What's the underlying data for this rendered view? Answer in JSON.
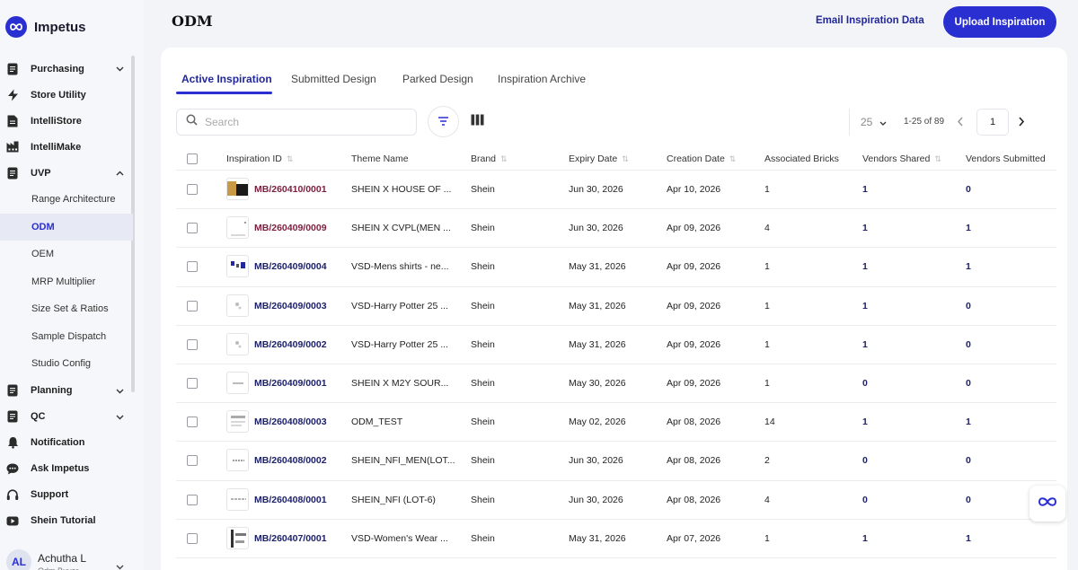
{
  "brand": {
    "name": "Impetus"
  },
  "sidebar": {
    "items": [
      {
        "key": "purchasing",
        "label": "Purchasing",
        "icon": "document-icon",
        "chevron": "down"
      },
      {
        "key": "store-utility",
        "label": "Store Utility",
        "icon": "lightning-icon"
      },
      {
        "key": "intellistore",
        "label": "IntelliStore",
        "icon": "store-doc-icon"
      },
      {
        "key": "intellimake",
        "label": "IntelliMake",
        "icon": "factory-icon"
      },
      {
        "key": "uvp",
        "label": "UVP",
        "icon": "document-icon",
        "chevron": "up"
      }
    ],
    "sub_items": [
      {
        "key": "range-architecture",
        "label": "Range Architecture"
      },
      {
        "key": "odm",
        "label": "ODM",
        "active": true
      },
      {
        "key": "oem",
        "label": "OEM"
      },
      {
        "key": "mrp-multiplier",
        "label": "MRP Multiplier"
      },
      {
        "key": "size-set-ratios",
        "label": "Size Set & Ratios"
      },
      {
        "key": "sample-dispatch",
        "label": "Sample Dispatch"
      },
      {
        "key": "studio-config",
        "label": "Studio Config"
      }
    ],
    "items_after": [
      {
        "key": "planning",
        "label": "Planning",
        "icon": "document-icon",
        "chevron": "down"
      },
      {
        "key": "qc",
        "label": "QC",
        "icon": "document-icon",
        "chevron": "down"
      },
      {
        "key": "notification",
        "label": "Notification",
        "icon": "bell-icon"
      },
      {
        "key": "ask-impetus",
        "label": "Ask Impetus",
        "icon": "chat-icon"
      },
      {
        "key": "support",
        "label": "Support",
        "icon": "headset-icon"
      },
      {
        "key": "shein-tutorial",
        "label": "Shein Tutorial",
        "icon": "video-icon"
      }
    ],
    "user": {
      "initials": "AL",
      "name": "Achutha L",
      "role": "Odm Buyer"
    }
  },
  "header": {
    "title": "ODM",
    "email_link": "Email Inspiration Data",
    "upload_button": "Upload Inspiration"
  },
  "tabs": [
    {
      "label": "Active Inspiration",
      "active": true
    },
    {
      "label": "Submitted Design"
    },
    {
      "label": "Parked Design"
    },
    {
      "label": "Inspiration Archive"
    }
  ],
  "toolbar": {
    "search_placeholder": "Search",
    "page_size": "25",
    "range": "1-25 of 89",
    "page": "1"
  },
  "table": {
    "columns": [
      {
        "key": "id",
        "label": "Inspiration ID",
        "sortable": true
      },
      {
        "key": "theme",
        "label": "Theme Name",
        "sortable": false
      },
      {
        "key": "brand",
        "label": "Brand",
        "sortable": true
      },
      {
        "key": "expiry",
        "label": "Expiry Date",
        "sortable": true
      },
      {
        "key": "creation",
        "label": "Creation Date",
        "sortable": true
      },
      {
        "key": "bricks",
        "label": "Associated Bricks",
        "sortable": false
      },
      {
        "key": "shared",
        "label": "Vendors Shared",
        "sortable": true
      },
      {
        "key": "submitted",
        "label": "Vendors Submitted",
        "sortable": false
      }
    ],
    "rows": [
      {
        "id": "MB/260410/0001",
        "theme": "SHEIN X HOUSE OF ...",
        "brand": "Shein",
        "expiry": "Jun 30, 2026",
        "creation": "Apr 10, 2026",
        "bricks": "1",
        "shared": "1",
        "submitted": "0",
        "id_color": "#7a1f3d"
      },
      {
        "id": "MB/260409/0009",
        "theme": "SHEIN X CVPL(MEN ...",
        "brand": "Shein",
        "expiry": "Jun 30, 2026",
        "creation": "Apr 09, 2026",
        "bricks": "4",
        "shared": "1",
        "submitted": "1",
        "id_color": "#7a1f3d"
      },
      {
        "id": "MB/260409/0004",
        "theme": "VSD-Mens shirts - ne...",
        "brand": "Shein",
        "expiry": "May 31, 2026",
        "creation": "Apr 09, 2026",
        "bricks": "1",
        "shared": "1",
        "submitted": "1",
        "id_color": "#1e2169"
      },
      {
        "id": "MB/260409/0003",
        "theme": "VSD-Harry Potter 25 ...",
        "brand": "Shein",
        "expiry": "May 31, 2026",
        "creation": "Apr 09, 2026",
        "bricks": "1",
        "shared": "1",
        "submitted": "0",
        "id_color": "#1e2169"
      },
      {
        "id": "MB/260409/0002",
        "theme": "VSD-Harry Potter 25 ...",
        "brand": "Shein",
        "expiry": "May 31, 2026",
        "creation": "Apr 09, 2026",
        "bricks": "1",
        "shared": "1",
        "submitted": "0",
        "id_color": "#1e2169"
      },
      {
        "id": "MB/260409/0001",
        "theme": "SHEIN X M2Y SOUR...",
        "brand": "Shein",
        "expiry": "May 30, 2026",
        "creation": "Apr 09, 2026",
        "bricks": "1",
        "shared": "0",
        "submitted": "0",
        "id_color": "#1e2169"
      },
      {
        "id": "MB/260408/0003",
        "theme": "ODM_TEST",
        "brand": "Shein",
        "expiry": "May 02, 2026",
        "creation": "Apr 08, 2026",
        "bricks": "14",
        "shared": "1",
        "submitted": "1",
        "id_color": "#1e2169"
      },
      {
        "id": "MB/260408/0002",
        "theme": "SHEIN_NFI_MEN(LOT...",
        "brand": "Shein",
        "expiry": "Jun 30, 2026",
        "creation": "Apr 08, 2026",
        "bricks": "2",
        "shared": "0",
        "submitted": "0",
        "id_color": "#1e2169"
      },
      {
        "id": "MB/260408/0001",
        "theme": "SHEIN_NFI (LOT-6)",
        "brand": "Shein",
        "expiry": "Jun 30, 2026",
        "creation": "Apr 08, 2026",
        "bricks": "4",
        "shared": "0",
        "submitted": "0",
        "id_color": "#1e2169"
      },
      {
        "id": "MB/260407/0001",
        "theme": "VSD-Women's Wear ...",
        "brand": "Shein",
        "expiry": "May 31, 2026",
        "creation": "Apr 07, 2026",
        "bricks": "1",
        "shared": "1",
        "submitted": "1",
        "id_color": "#1e2169"
      }
    ]
  },
  "colors": {
    "accent": "#2a2fd1",
    "link": "#22279a",
    "id_dark": "#1e2169",
    "id_maroon": "#7a1f3d"
  }
}
